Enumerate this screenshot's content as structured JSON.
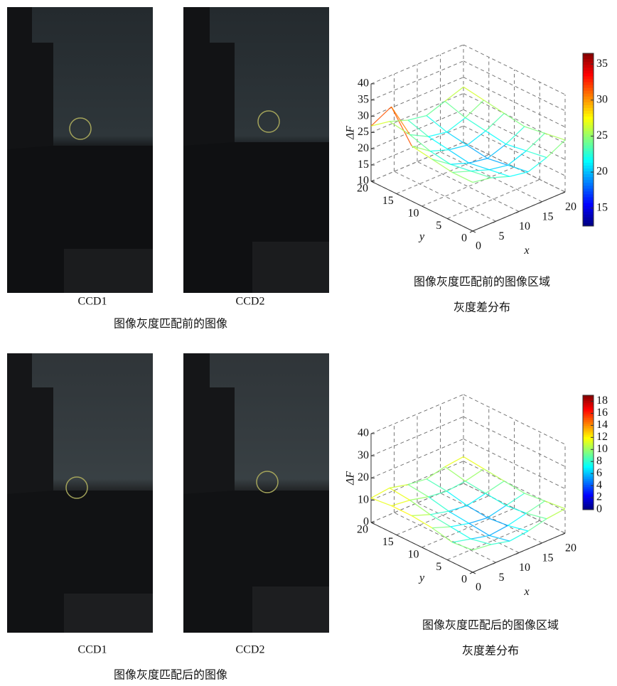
{
  "rows": [
    {
      "photo_labels": [
        "CCD1",
        "CCD2"
      ],
      "photo_caption": "图像灰度匹配前的图像",
      "chart_caption": [
        "图像灰度匹配前的图像区域",
        "灰度差分布"
      ]
    },
    {
      "photo_labels": [
        "CCD1",
        "CCD2"
      ],
      "photo_caption": "图像灰度匹配后的图像",
      "chart_caption": [
        "图像灰度匹配后的图像区域",
        "灰度差分布"
      ]
    }
  ],
  "chart_data": [
    {
      "type": "surface",
      "zlabel": "ΔF",
      "xlabel": "x",
      "ylabel": "y",
      "colormap": "jet",
      "x": [
        0,
        4,
        8,
        12,
        16,
        20
      ],
      "y": [
        0,
        4,
        8,
        12,
        16,
        20
      ],
      "z": [
        [
          25,
          24,
          22,
          21,
          23,
          26
        ],
        [
          25,
          23,
          21,
          20,
          22,
          25
        ],
        [
          26,
          22,
          20,
          19,
          21,
          24
        ],
        [
          27,
          23,
          21,
          20,
          22,
          25
        ],
        [
          36,
          25,
          22,
          21,
          23,
          26
        ],
        [
          27,
          26,
          24,
          23,
          25,
          27
        ]
      ],
      "xlim": [
        0,
        20
      ],
      "xticks": [
        0,
        5,
        10,
        15,
        20
      ],
      "ylim": [
        0,
        20
      ],
      "yticks": [
        0,
        5,
        10,
        15,
        20
      ],
      "zlim": [
        10,
        40
      ],
      "zticks": [
        10,
        15,
        20,
        25,
        30,
        35,
        40
      ],
      "clim": [
        12.5,
        36.5
      ],
      "cticks": [
        15,
        20,
        25,
        30,
        35
      ],
      "grid": true
    },
    {
      "type": "surface",
      "zlabel": "ΔF",
      "xlabel": "x",
      "ylabel": "y",
      "colormap": "jet",
      "x": [
        0,
        4,
        8,
        12,
        16,
        20
      ],
      "y": [
        0,
        4,
        8,
        12,
        16,
        20
      ],
      "z": [
        [
          10,
          9,
          7,
          8,
          10,
          11
        ],
        [
          9,
          7,
          5,
          6,
          8,
          10
        ],
        [
          11,
          8,
          6,
          5,
          7,
          9
        ],
        [
          12,
          9,
          7,
          6,
          8,
          10
        ],
        [
          12,
          11,
          9,
          8,
          9,
          11
        ],
        [
          11,
          12,
          10,
          9,
          11,
          12
        ]
      ],
      "xlim": [
        0,
        20
      ],
      "xticks": [
        0,
        5,
        10,
        15,
        20
      ],
      "ylim": [
        0,
        20
      ],
      "yticks": [
        0,
        5,
        10,
        15,
        20
      ],
      "zlim": [
        0,
        40
      ],
      "zticks": [
        0,
        10,
        20,
        30,
        40
      ],
      "clim": [
        0,
        19
      ],
      "cticks": [
        0,
        2,
        4,
        6,
        8,
        10,
        12,
        14,
        16,
        18
      ],
      "grid": true
    }
  ]
}
